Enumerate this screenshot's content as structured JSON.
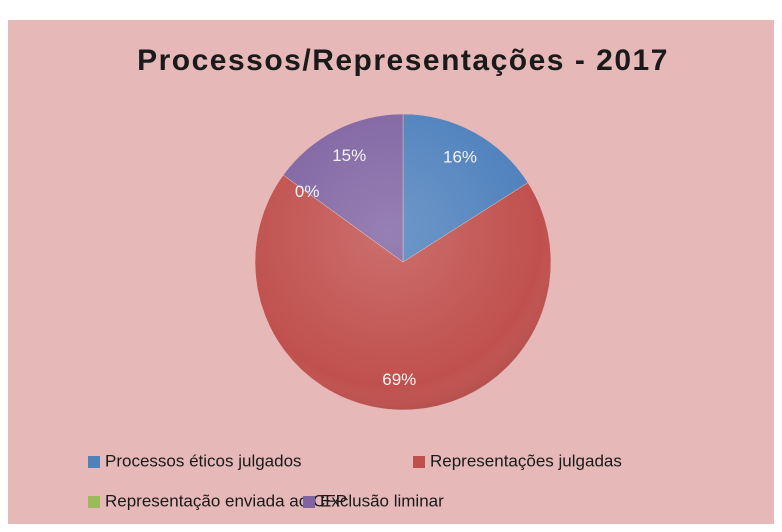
{
  "chart_data": {
    "type": "pie",
    "title": "Processos/Representações - 2017",
    "categories": [
      "Processos éticos julgados",
      "Representações julgadas",
      "Representação enviada ao CFP",
      "Exclusão liminar"
    ],
    "values": [
      16,
      69,
      0,
      15
    ],
    "value_labels": [
      "16%",
      "69%",
      "0%",
      "15%"
    ],
    "colors": [
      "#4f81bd",
      "#c0504d",
      "#9bbb59",
      "#8064a2"
    ],
    "legend": "bottom"
  }
}
